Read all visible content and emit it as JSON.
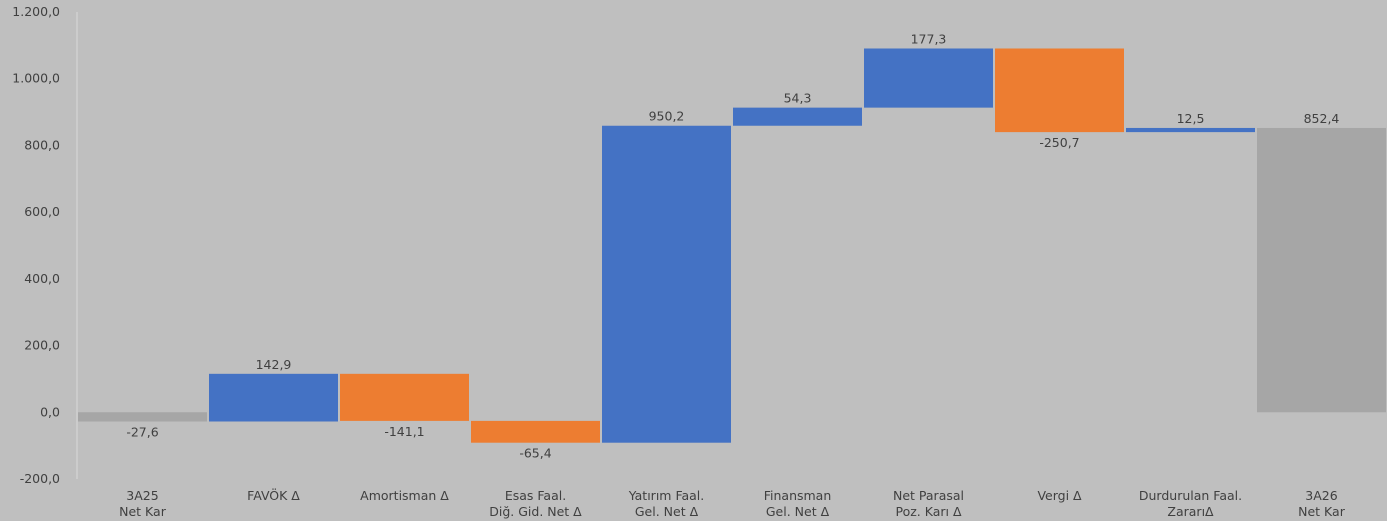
{
  "chart_data": {
    "type": "bar",
    "subtype": "waterfall",
    "title": "",
    "xlabel": "",
    "ylabel": "",
    "ylim": [
      -200,
      1200
    ],
    "yticks": [
      -200,
      0,
      200,
      400,
      600,
      800,
      1000,
      1200
    ],
    "ytick_labels": [
      "-200,0",
      "0,0",
      "200,0",
      "400,0",
      "600,0",
      "800,0",
      "1.000,0",
      "1.200,0"
    ],
    "grid": false,
    "legend": "none",
    "colors": {
      "total": "#a6a6a6",
      "increase": "#4472c4",
      "decrease": "#ed7d31",
      "text": "#404040",
      "background": "#bfbfbf"
    },
    "categories": [
      [
        "3A25",
        "Net Kar"
      ],
      [
        "FAVÖK Δ"
      ],
      [
        "Amortisman Δ"
      ],
      [
        "Esas Faal.",
        "Diğ. Gid. Net Δ"
      ],
      [
        "Yatırım Faal.",
        "Gel. Net Δ"
      ],
      [
        "Finansman",
        "Gel. Net Δ"
      ],
      [
        "Net Parasal",
        "Poz. Karı Δ"
      ],
      [
        "Vergi Δ"
      ],
      [
        "Durdurulan Faal.",
        "ZararıΔ"
      ],
      [
        "3A26",
        "Net Kar"
      ]
    ],
    "values": [
      -27.6,
      142.9,
      -141.1,
      -65.4,
      950.2,
      54.3,
      177.3,
      -250.7,
      12.5,
      852.4
    ],
    "kinds": [
      "total",
      "delta",
      "delta",
      "delta",
      "delta",
      "delta",
      "delta",
      "delta",
      "delta",
      "total"
    ],
    "value_labels": [
      "-27,6",
      "142,9",
      "-141,1",
      "-65,4",
      "950,2",
      "54,3",
      "177,3",
      "-250,7",
      "12,5",
      "852,4"
    ]
  }
}
